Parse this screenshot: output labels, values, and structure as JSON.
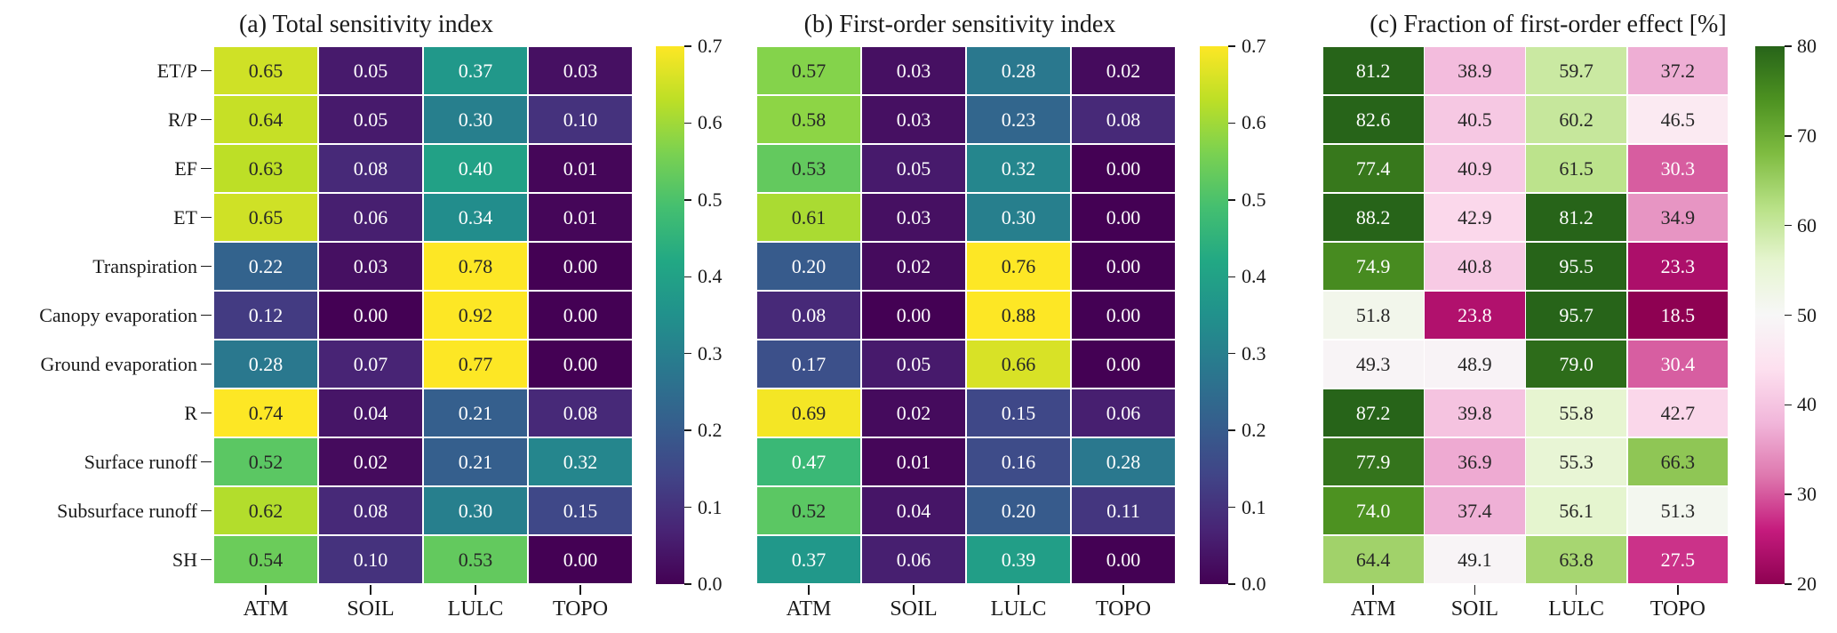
{
  "figure_text_color": "#1a1a1a",
  "annotation_colors": {
    "dark": "#262626",
    "light": "#ffffff"
  },
  "colormaps": {
    "viridis": [
      "#440154",
      "#482475",
      "#414487",
      "#355f8d",
      "#2a788e",
      "#21918c",
      "#22a884",
      "#44bf70",
      "#7ad151",
      "#bddf26",
      "#fde725"
    ],
    "piyg": [
      "#8e0152",
      "#c51b7d",
      "#de77ae",
      "#f1b6da",
      "#fde0ef",
      "#f7f7f7",
      "#e6f5d0",
      "#b8e186",
      "#7fbc41",
      "#4d9221",
      "#276419"
    ]
  },
  "chart_data": [
    {
      "type": "heatmap",
      "title": "(a) Total sensitivity index",
      "columns": [
        "ATM",
        "SOIL",
        "LULC",
        "TOPO"
      ],
      "rows": [
        "ET/P",
        "R/P",
        "EF",
        "ET",
        "Transpiration",
        "Canopy evaporation",
        "Ground evaporation",
        "R",
        "Surface runoff",
        "Subsurface runoff",
        "SH"
      ],
      "values": [
        [
          0.65,
          0.05,
          0.37,
          0.03
        ],
        [
          0.64,
          0.05,
          0.3,
          0.1
        ],
        [
          0.63,
          0.08,
          0.4,
          0.01
        ],
        [
          0.65,
          0.06,
          0.34,
          0.01
        ],
        [
          0.22,
          0.03,
          0.78,
          0.0
        ],
        [
          0.12,
          0.0,
          0.92,
          0.0
        ],
        [
          0.28,
          0.07,
          0.77,
          0.0
        ],
        [
          0.74,
          0.04,
          0.21,
          0.08
        ],
        [
          0.52,
          0.02,
          0.21,
          0.32
        ],
        [
          0.62,
          0.08,
          0.3,
          0.15
        ],
        [
          0.54,
          0.1,
          0.53,
          0.0
        ]
      ],
      "vmin": 0.0,
      "vmax": 0.7,
      "decimals": 2,
      "colormap": "viridis",
      "show_row_labels": true,
      "colorbar_ticks": [
        0.7,
        0.6,
        0.5,
        0.4,
        0.3,
        0.2,
        0.1,
        0.0
      ],
      "colorbar_tick_labels": [
        "0.7",
        "0.6",
        "0.5",
        "0.4",
        "0.3",
        "0.2",
        "0.1",
        "0.0"
      ],
      "legend_position": "right"
    },
    {
      "type": "heatmap",
      "title": "(b) First-order sensitivity index",
      "columns": [
        "ATM",
        "SOIL",
        "LULC",
        "TOPO"
      ],
      "rows": [
        "ET/P",
        "R/P",
        "EF",
        "ET",
        "Transpiration",
        "Canopy evaporation",
        "Ground evaporation",
        "R",
        "Surface runoff",
        "Subsurface runoff",
        "SH"
      ],
      "values": [
        [
          0.57,
          0.03,
          0.28,
          0.02
        ],
        [
          0.58,
          0.03,
          0.23,
          0.08
        ],
        [
          0.53,
          0.05,
          0.32,
          0.0
        ],
        [
          0.61,
          0.03,
          0.3,
          0.0
        ],
        [
          0.2,
          0.02,
          0.76,
          0.0
        ],
        [
          0.08,
          0.0,
          0.88,
          0.0
        ],
        [
          0.17,
          0.05,
          0.66,
          0.0
        ],
        [
          0.69,
          0.02,
          0.15,
          0.06
        ],
        [
          0.47,
          0.01,
          0.16,
          0.28
        ],
        [
          0.52,
          0.04,
          0.2,
          0.11
        ],
        [
          0.37,
          0.06,
          0.39,
          0.0
        ]
      ],
      "vmin": 0.0,
      "vmax": 0.7,
      "decimals": 2,
      "colormap": "viridis",
      "show_row_labels": false,
      "colorbar_ticks": [
        0.7,
        0.6,
        0.5,
        0.4,
        0.3,
        0.2,
        0.1,
        0.0
      ],
      "colorbar_tick_labels": [
        "0.7",
        "0.6",
        "0.5",
        "0.4",
        "0.3",
        "0.2",
        "0.1",
        "0.0"
      ],
      "legend_position": "right"
    },
    {
      "type": "heatmap",
      "title": "(c) Fraction of first-order effect [%]",
      "columns": [
        "ATM",
        "SOIL",
        "LULC",
        "TOPO"
      ],
      "rows": [
        "ET/P",
        "R/P",
        "EF",
        "ET",
        "Transpiration",
        "Canopy evaporation",
        "Ground evaporation",
        "R",
        "Surface runoff",
        "Subsurface runoff",
        "SH"
      ],
      "values": [
        [
          81.2,
          38.9,
          59.7,
          37.2
        ],
        [
          82.6,
          40.5,
          60.2,
          46.5
        ],
        [
          77.4,
          40.9,
          61.5,
          30.3
        ],
        [
          88.2,
          42.9,
          81.2,
          34.9
        ],
        [
          74.9,
          40.8,
          95.5,
          23.3
        ],
        [
          51.8,
          23.8,
          95.7,
          18.5
        ],
        [
          49.3,
          48.9,
          79.0,
          30.4
        ],
        [
          87.2,
          39.8,
          55.8,
          42.7
        ],
        [
          77.9,
          36.9,
          55.3,
          66.3
        ],
        [
          74.0,
          37.4,
          56.1,
          51.3
        ],
        [
          64.4,
          49.1,
          63.8,
          27.5
        ]
      ],
      "vmin": 20,
      "vmax": 80,
      "decimals": 1,
      "colormap": "piyg",
      "show_row_labels": false,
      "colorbar_ticks": [
        80,
        70,
        60,
        50,
        40,
        30,
        20
      ],
      "colorbar_tick_labels": [
        "80",
        "70",
        "60",
        "50",
        "40",
        "30",
        "20"
      ],
      "legend_position": "right"
    }
  ]
}
